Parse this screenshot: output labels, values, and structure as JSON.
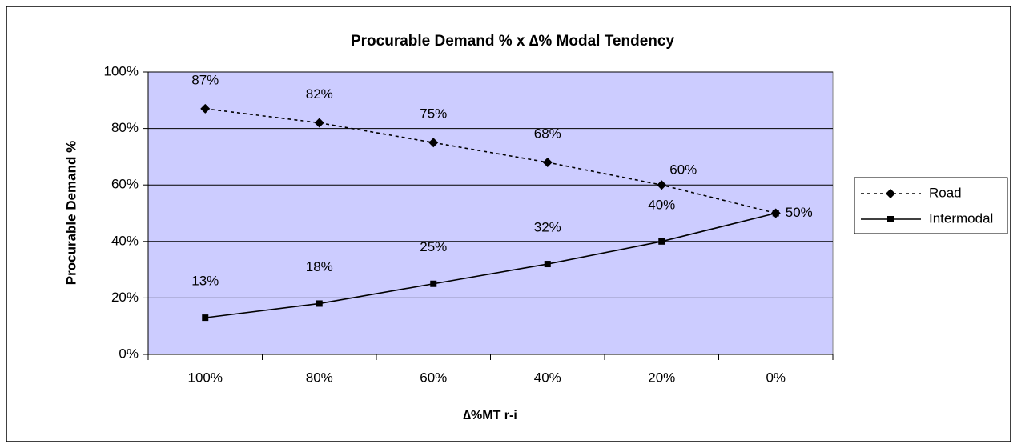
{
  "chart_data": {
    "type": "line",
    "title": "Procurable Demand % x ∆% Modal Tendency",
    "x_label": "∆%MT r-i",
    "y_label": "Procurable Demand  %",
    "categories": [
      "100%",
      "80%",
      "60%",
      "40%",
      "20%",
      "0%"
    ],
    "series": [
      {
        "name": "Road",
        "color": "#000000",
        "line_style": "dashed",
        "marker": "diamond",
        "values": [
          87,
          82,
          75,
          68,
          60,
          50
        ],
        "value_labels": [
          "87%",
          "82%",
          "75%",
          "68%",
          "60%",
          "50%"
        ]
      },
      {
        "name": "Intermodal",
        "color": "#000000",
        "line_style": "solid",
        "marker": "square",
        "values": [
          13,
          18,
          25,
          32,
          40,
          50
        ],
        "value_labels": [
          "13%",
          "18%",
          "25%",
          "32%",
          "40%",
          "50%"
        ]
      }
    ],
    "ylim": [
      0,
      100
    ],
    "yticks": [
      {
        "value": 0,
        "label": "0%"
      },
      {
        "value": 20,
        "label": "20%"
      },
      {
        "value": 40,
        "label": "40%"
      },
      {
        "value": 60,
        "label": "60%"
      },
      {
        "value": 80,
        "label": "80%"
      },
      {
        "value": 100,
        "label": "100%"
      }
    ],
    "grid": true,
    "plot_background": "#ccccff",
    "legend": "right"
  }
}
